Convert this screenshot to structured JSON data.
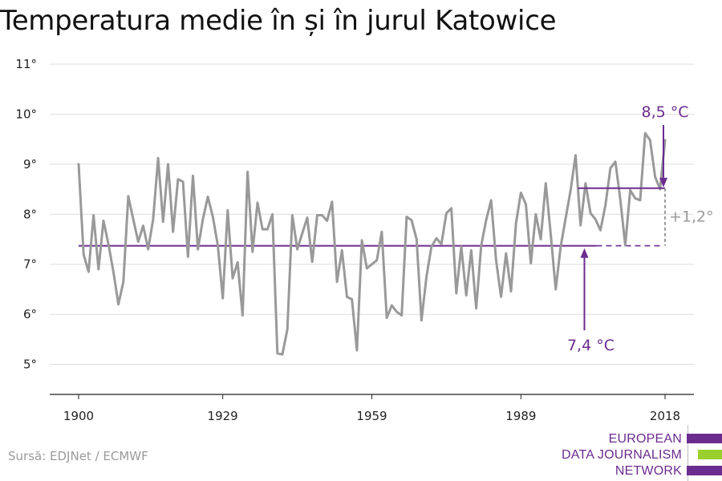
{
  "title": "Temperatura medie în și în jurul Katowice",
  "source": "Sursă: EDJNet / ECMWF",
  "logo": {
    "lines": [
      "EUROPEAN",
      "DATA JOURNALISM",
      "NETWORK"
    ],
    "colors": [
      "#6b2c8f",
      "#9bcf2e",
      "#6b2c8f"
    ]
  },
  "chart_data": {
    "type": "line",
    "y_tick_labels": [
      "5°",
      "6°",
      "7°",
      "8°",
      "9°",
      "10°",
      "11°"
    ],
    "y_ticks": [
      5,
      6,
      7,
      8,
      9,
      10,
      11
    ],
    "x_ticks": [
      1900,
      1929,
      1959,
      1989,
      2018
    ],
    "x_tick_labels": [
      "1900",
      "1929",
      "1959",
      "1989",
      "2018"
    ],
    "xlim": [
      1900,
      2018
    ],
    "ylim": [
      4.4,
      11.4
    ],
    "grid": true,
    "series": [
      {
        "x": [
          1900,
          1901,
          1902,
          1903,
          1904,
          1905,
          1906,
          1907,
          1908,
          1909,
          1910,
          1911,
          1912,
          1913,
          1914,
          1915,
          1916,
          1917,
          1918,
          1919,
          1920,
          1921,
          1922,
          1923,
          1924,
          1925,
          1926,
          1927,
          1928,
          1929,
          1930,
          1931,
          1932,
          1933,
          1934,
          1935,
          1936,
          1937,
          1938,
          1939,
          1940,
          1941,
          1942,
          1943,
          1944,
          1945,
          1946,
          1947,
          1948,
          1949,
          1950,
          1951,
          1952,
          1953,
          1954,
          1955,
          1956,
          1957,
          1958,
          1959,
          1960,
          1961,
          1962,
          1963,
          1964,
          1965,
          1966,
          1967,
          1968,
          1969,
          1970,
          1971,
          1972,
          1973,
          1974,
          1975,
          1976,
          1977,
          1978,
          1979,
          1980,
          1981,
          1982,
          1983,
          1984,
          1985,
          1986,
          1987,
          1988,
          1989,
          1990,
          1991,
          1992,
          1993,
          1994,
          1995,
          1996,
          1997,
          1998,
          1999,
          2000,
          2001,
          2002,
          2003,
          2004,
          2005,
          2006,
          2007,
          2008,
          2009,
          2010,
          2011,
          2012,
          2013,
          2014,
          2015,
          2016,
          2017,
          2018
        ],
        "values": [
          9.0,
          7.2,
          6.85,
          7.98,
          6.9,
          7.87,
          7.4,
          6.85,
          6.2,
          6.65,
          8.36,
          7.9,
          7.45,
          7.77,
          7.3,
          7.9,
          9.12,
          7.85,
          9.0,
          7.65,
          8.7,
          8.65,
          7.15,
          8.77,
          7.3,
          7.9,
          8.35,
          7.95,
          7.38,
          6.32,
          8.08,
          6.72,
          7.04,
          5.98,
          8.85,
          7.25,
          8.23,
          7.7,
          7.7,
          8.0,
          5.22,
          5.2,
          5.7,
          7.98,
          7.3,
          7.62,
          7.93,
          7.05,
          7.98,
          7.98,
          7.87,
          8.25,
          6.65,
          7.28,
          6.35,
          6.3,
          5.28,
          7.48,
          6.92,
          7.0,
          7.08,
          7.65,
          5.93,
          6.18,
          6.05,
          5.98,
          7.95,
          7.88,
          7.5,
          5.88,
          6.75,
          7.35,
          7.52,
          7.4,
          8.02,
          8.12,
          6.42,
          7.35,
          6.38,
          7.28,
          6.12,
          7.37,
          7.88,
          8.28,
          7.08,
          6.35,
          7.22,
          6.46,
          7.82,
          8.43,
          8.2,
          7.02,
          8.0,
          7.5,
          8.62,
          7.6,
          6.5,
          7.35,
          7.92,
          8.48,
          9.18,
          7.78,
          8.62,
          8.02,
          7.9,
          7.68,
          8.18,
          8.92,
          9.05,
          8.3,
          7.38,
          8.48,
          8.32,
          8.28,
          9.62,
          9.48,
          8.75,
          8.5,
          9.48
        ]
      }
    ],
    "baseline": {
      "label": "7,4 °C",
      "value": 7.37,
      "from": 1900,
      "to": 2000
    },
    "baseline_projection": {
      "from": 2000,
      "to": 2018
    },
    "recent_mean": {
      "label": "8,5 °C",
      "value": 8.52,
      "from": 2000,
      "to": 2018
    },
    "difference": {
      "label": "+1,2°"
    },
    "colors": {
      "line": "#999999",
      "mean": "#6b2c8f",
      "grid": "#dddddd",
      "axis": "#222222",
      "difference": "#9a9a9a"
    }
  }
}
